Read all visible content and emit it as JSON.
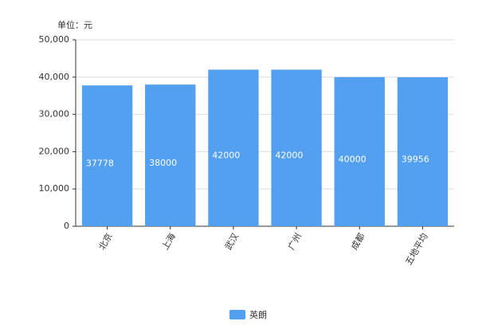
{
  "chart_data": {
    "type": "bar",
    "y_axis_label": "单位：元",
    "categories": [
      "北京",
      "上海",
      "武汉",
      "广州",
      "成都",
      "五地平均"
    ],
    "series": [
      {
        "name": "英朗",
        "color": "#539ff0",
        "values": [
          37778,
          38000,
          42000,
          42000,
          40000,
          39956
        ]
      }
    ],
    "ylim": [
      0,
      50000
    ],
    "yticks": [
      0,
      {
        "value": 10000,
        "label": "10,000"
      },
      {
        "value": 20000,
        "label": "20,000"
      },
      {
        "value": 30000,
        "label": "30,000"
      },
      {
        "value": 40000,
        "label": "40,000"
      },
      {
        "value": 50000,
        "label": "50,000"
      }
    ],
    "grid": true,
    "legend": "bottom"
  }
}
